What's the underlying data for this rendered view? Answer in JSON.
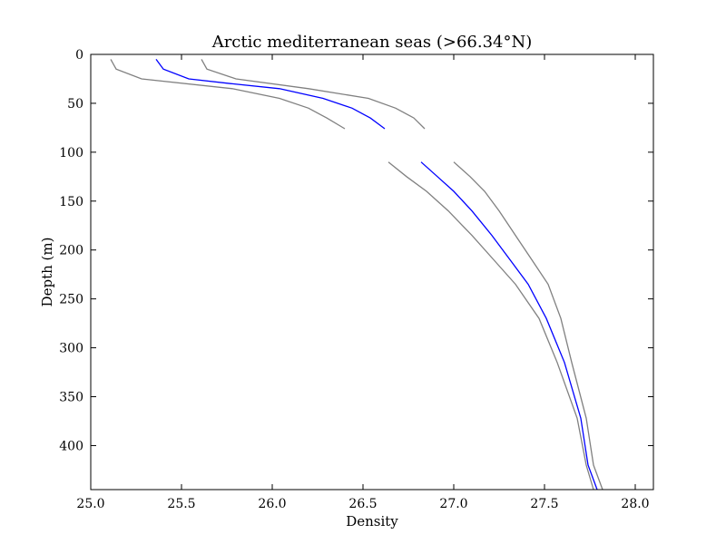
{
  "chart_data": {
    "type": "line",
    "title": "Arctic mediterranean seas (>66.34°N)",
    "xlabel": "Density",
    "ylabel": "Depth (m)",
    "xlim": [
      25.0,
      28.1
    ],
    "ylim": [
      445,
      0
    ],
    "y_inverted": true,
    "grid": false,
    "legend": "none",
    "x_ticks": [
      "25.0",
      "25.5",
      "26.0",
      "26.5",
      "27.0",
      "27.5",
      "28.0"
    ],
    "y_ticks": [
      "0",
      "50",
      "100",
      "150",
      "200",
      "250",
      "300",
      "350",
      "400"
    ],
    "series": [
      {
        "role": "mean",
        "color": "#0000ff",
        "segments": [
          [
            [
              25.36,
              5
            ],
            [
              25.4,
              15
            ],
            [
              25.54,
              25
            ],
            [
              25.78,
              30
            ],
            [
              26.04,
              35
            ],
            [
              26.28,
              45
            ],
            [
              26.44,
              55
            ],
            [
              26.54,
              65
            ],
            [
              26.62,
              76
            ]
          ],
          [
            [
              26.82,
              110
            ],
            [
              26.91,
              125
            ],
            [
              27.0,
              140
            ],
            [
              27.1,
              160
            ],
            [
              27.21,
              185
            ],
            [
              27.31,
              210
            ],
            [
              27.41,
              235
            ],
            [
              27.51,
              270
            ],
            [
              27.61,
              315
            ],
            [
              27.7,
              372
            ],
            [
              27.74,
              420
            ],
            [
              27.79,
              445
            ]
          ]
        ]
      },
      {
        "role": "lower-bound",
        "color": "#808080",
        "segments": [
          [
            [
              25.11,
              5
            ],
            [
              25.14,
              15
            ],
            [
              25.28,
              25
            ],
            [
              25.78,
              35
            ],
            [
              26.04,
              45
            ],
            [
              26.2,
              55
            ],
            [
              26.3,
              65
            ],
            [
              26.4,
              76
            ]
          ],
          [
            [
              26.64,
              110
            ],
            [
              26.74,
              125
            ],
            [
              26.85,
              140
            ],
            [
              26.97,
              160
            ],
            [
              27.1,
              185
            ],
            [
              27.22,
              210
            ],
            [
              27.34,
              235
            ],
            [
              27.47,
              270
            ],
            [
              27.57,
              315
            ],
            [
              27.68,
              372
            ],
            [
              27.73,
              420
            ],
            [
              27.77,
              445
            ]
          ]
        ]
      },
      {
        "role": "upper-bound",
        "color": "#808080",
        "segments": [
          [
            [
              25.61,
              5
            ],
            [
              25.64,
              15
            ],
            [
              25.8,
              25
            ],
            [
              26.2,
              35
            ],
            [
              26.53,
              45
            ],
            [
              26.68,
              55
            ],
            [
              26.78,
              65
            ],
            [
              26.84,
              76
            ]
          ],
          [
            [
              27.0,
              110
            ],
            [
              27.09,
              125
            ],
            [
              27.17,
              140
            ],
            [
              27.25,
              160
            ],
            [
              27.34,
              185
            ],
            [
              27.43,
              210
            ],
            [
              27.52,
              235
            ],
            [
              27.59,
              270
            ],
            [
              27.65,
              315
            ],
            [
              27.73,
              372
            ],
            [
              27.77,
              420
            ],
            [
              27.82,
              445
            ]
          ]
        ]
      }
    ]
  }
}
